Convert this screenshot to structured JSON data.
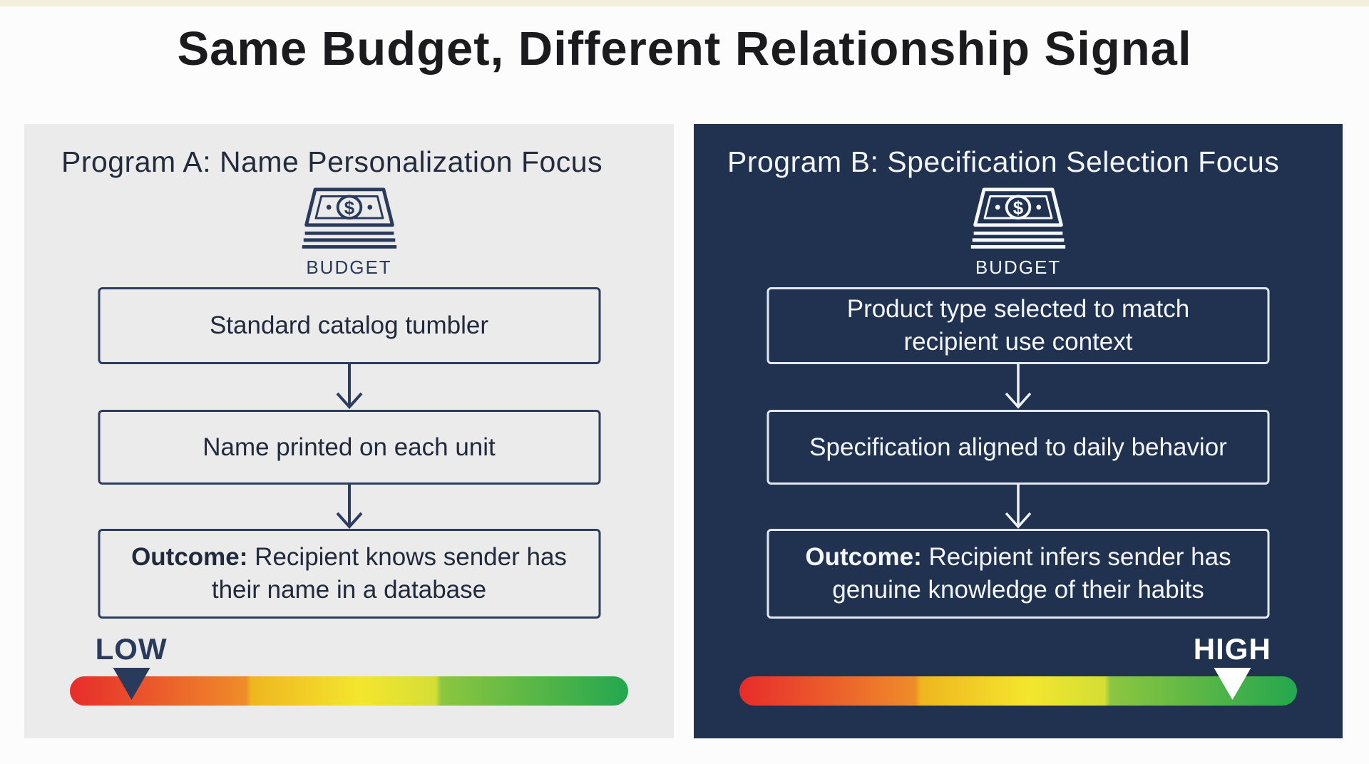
{
  "title": "Same Budget, Different Relationship Signal",
  "panels": [
    {
      "header": "Program A: Name Personalization Focus",
      "budget_label": "BUDGET",
      "budget_symbol": "$",
      "flow_boxes": [
        {
          "prefix": "",
          "text": "Standard catalog tumbler"
        },
        {
          "prefix": "",
          "text": "Name printed on each unit"
        },
        {
          "prefix": "Outcome:",
          "text": "Recipient knows sender has their name in a database"
        }
      ],
      "scale": {
        "label": "LOW",
        "marker_pct": 11
      }
    },
    {
      "header": "Program B: Specification Selection Focus",
      "budget_label": "BUDGET",
      "budget_symbol": "$",
      "flow_boxes": [
        {
          "prefix": "",
          "text": "Product type selected to match recipient use context"
        },
        {
          "prefix": "",
          "text": "Specification aligned to daily behavior"
        },
        {
          "prefix": "Outcome:",
          "text": "Recipient infers sender has genuine knowledge of their habits"
        }
      ],
      "scale": {
        "label": "HIGH",
        "marker_pct": 88.4
      }
    }
  ],
  "colors": {
    "navy_accent": "#293a5c",
    "panel_a_bg": "#ebebeb",
    "panel_b_bg": "#213150",
    "light_text": "#f2f5f9",
    "title_text": "#1b1b1d",
    "bar_gradient": [
      "#e72c2b",
      "#ef8c2a",
      "#eeb61f",
      "#f4e62e",
      "#d4de35",
      "#8cc63f",
      "#24a74f"
    ],
    "marker_a": "#293a5c",
    "marker_b": "#ffffff"
  }
}
